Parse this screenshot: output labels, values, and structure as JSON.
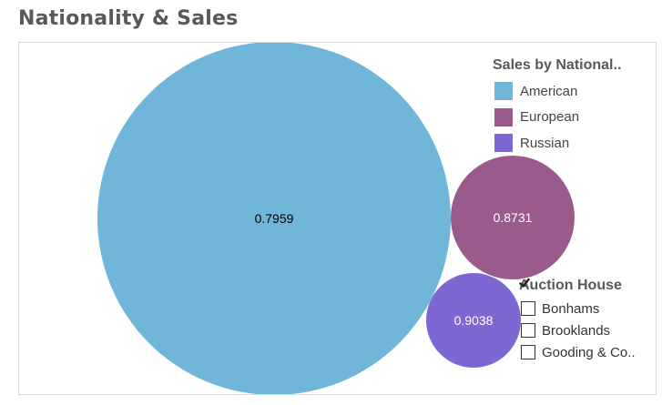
{
  "title": "Nationality & Sales",
  "chart_data": {
    "type": "bubble",
    "bubbles": [
      {
        "category": "American",
        "label": "0.7959",
        "value": 0.7959,
        "color": "#6fb6d9",
        "label_color": "#000000"
      },
      {
        "category": "European",
        "label": "0.8731",
        "value": 0.8731,
        "color": "#9b5a8c",
        "label_color": "#ffffff"
      },
      {
        "category": "Russian",
        "label": "0.9038",
        "value": 0.9038,
        "color": "#7d67d3",
        "label_color": "#ffffff"
      }
    ]
  },
  "legend": {
    "title": "Sales by National..",
    "items": [
      {
        "label": "American",
        "color": "#6fb6d9"
      },
      {
        "label": "European",
        "color": "#9b5a8c"
      },
      {
        "label": "Russian",
        "color": "#7d67d3"
      }
    ]
  },
  "filter": {
    "title": "Auction House",
    "items": [
      {
        "label": "Bonhams",
        "checked": true
      },
      {
        "label": "Brooklands",
        "checked": true
      },
      {
        "label": "Gooding & Co..",
        "checked": true
      }
    ]
  }
}
